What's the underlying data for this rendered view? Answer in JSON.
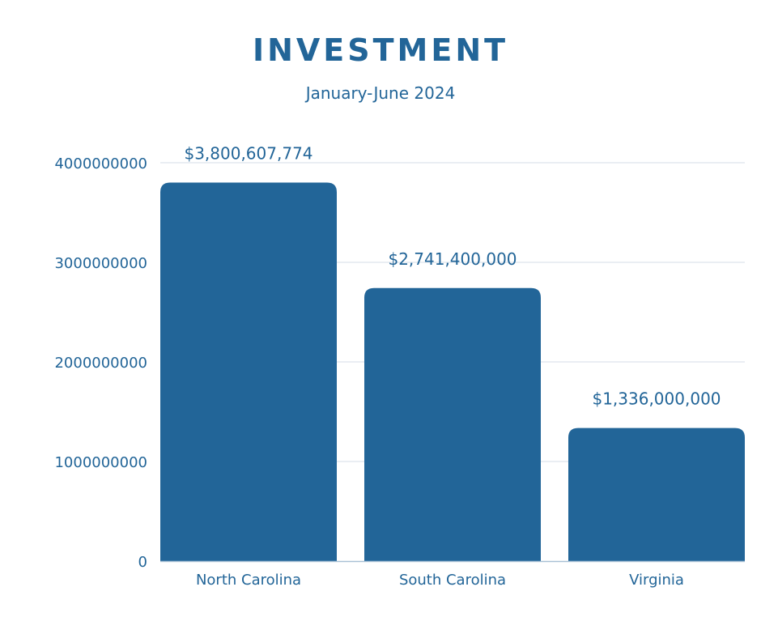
{
  "chart_data": {
    "type": "bar",
    "title": "INVESTMENT",
    "subtitle": "January-June 2024",
    "categories": [
      "North Carolina",
      "South Carolina",
      "Virginia"
    ],
    "values": [
      3800607774,
      2741400000,
      1336000000
    ],
    "data_labels": [
      "$3,800,607,774",
      "$2,741,400,000",
      "$1,336,000,000"
    ],
    "yticks": [
      0,
      1000000000,
      2000000000,
      3000000000,
      4000000000
    ],
    "ytick_labels": [
      "0",
      "1000000000",
      "2000000000",
      "3000000000",
      "4000000000"
    ],
    "ylim": [
      0,
      4000000000
    ],
    "xlabel": "",
    "ylabel": "",
    "grid": true,
    "legend": "none",
    "colors": {
      "bar": "#226598",
      "text": "#226598",
      "grid": "#e3e9ef",
      "axis": "#a9c1d6"
    }
  }
}
